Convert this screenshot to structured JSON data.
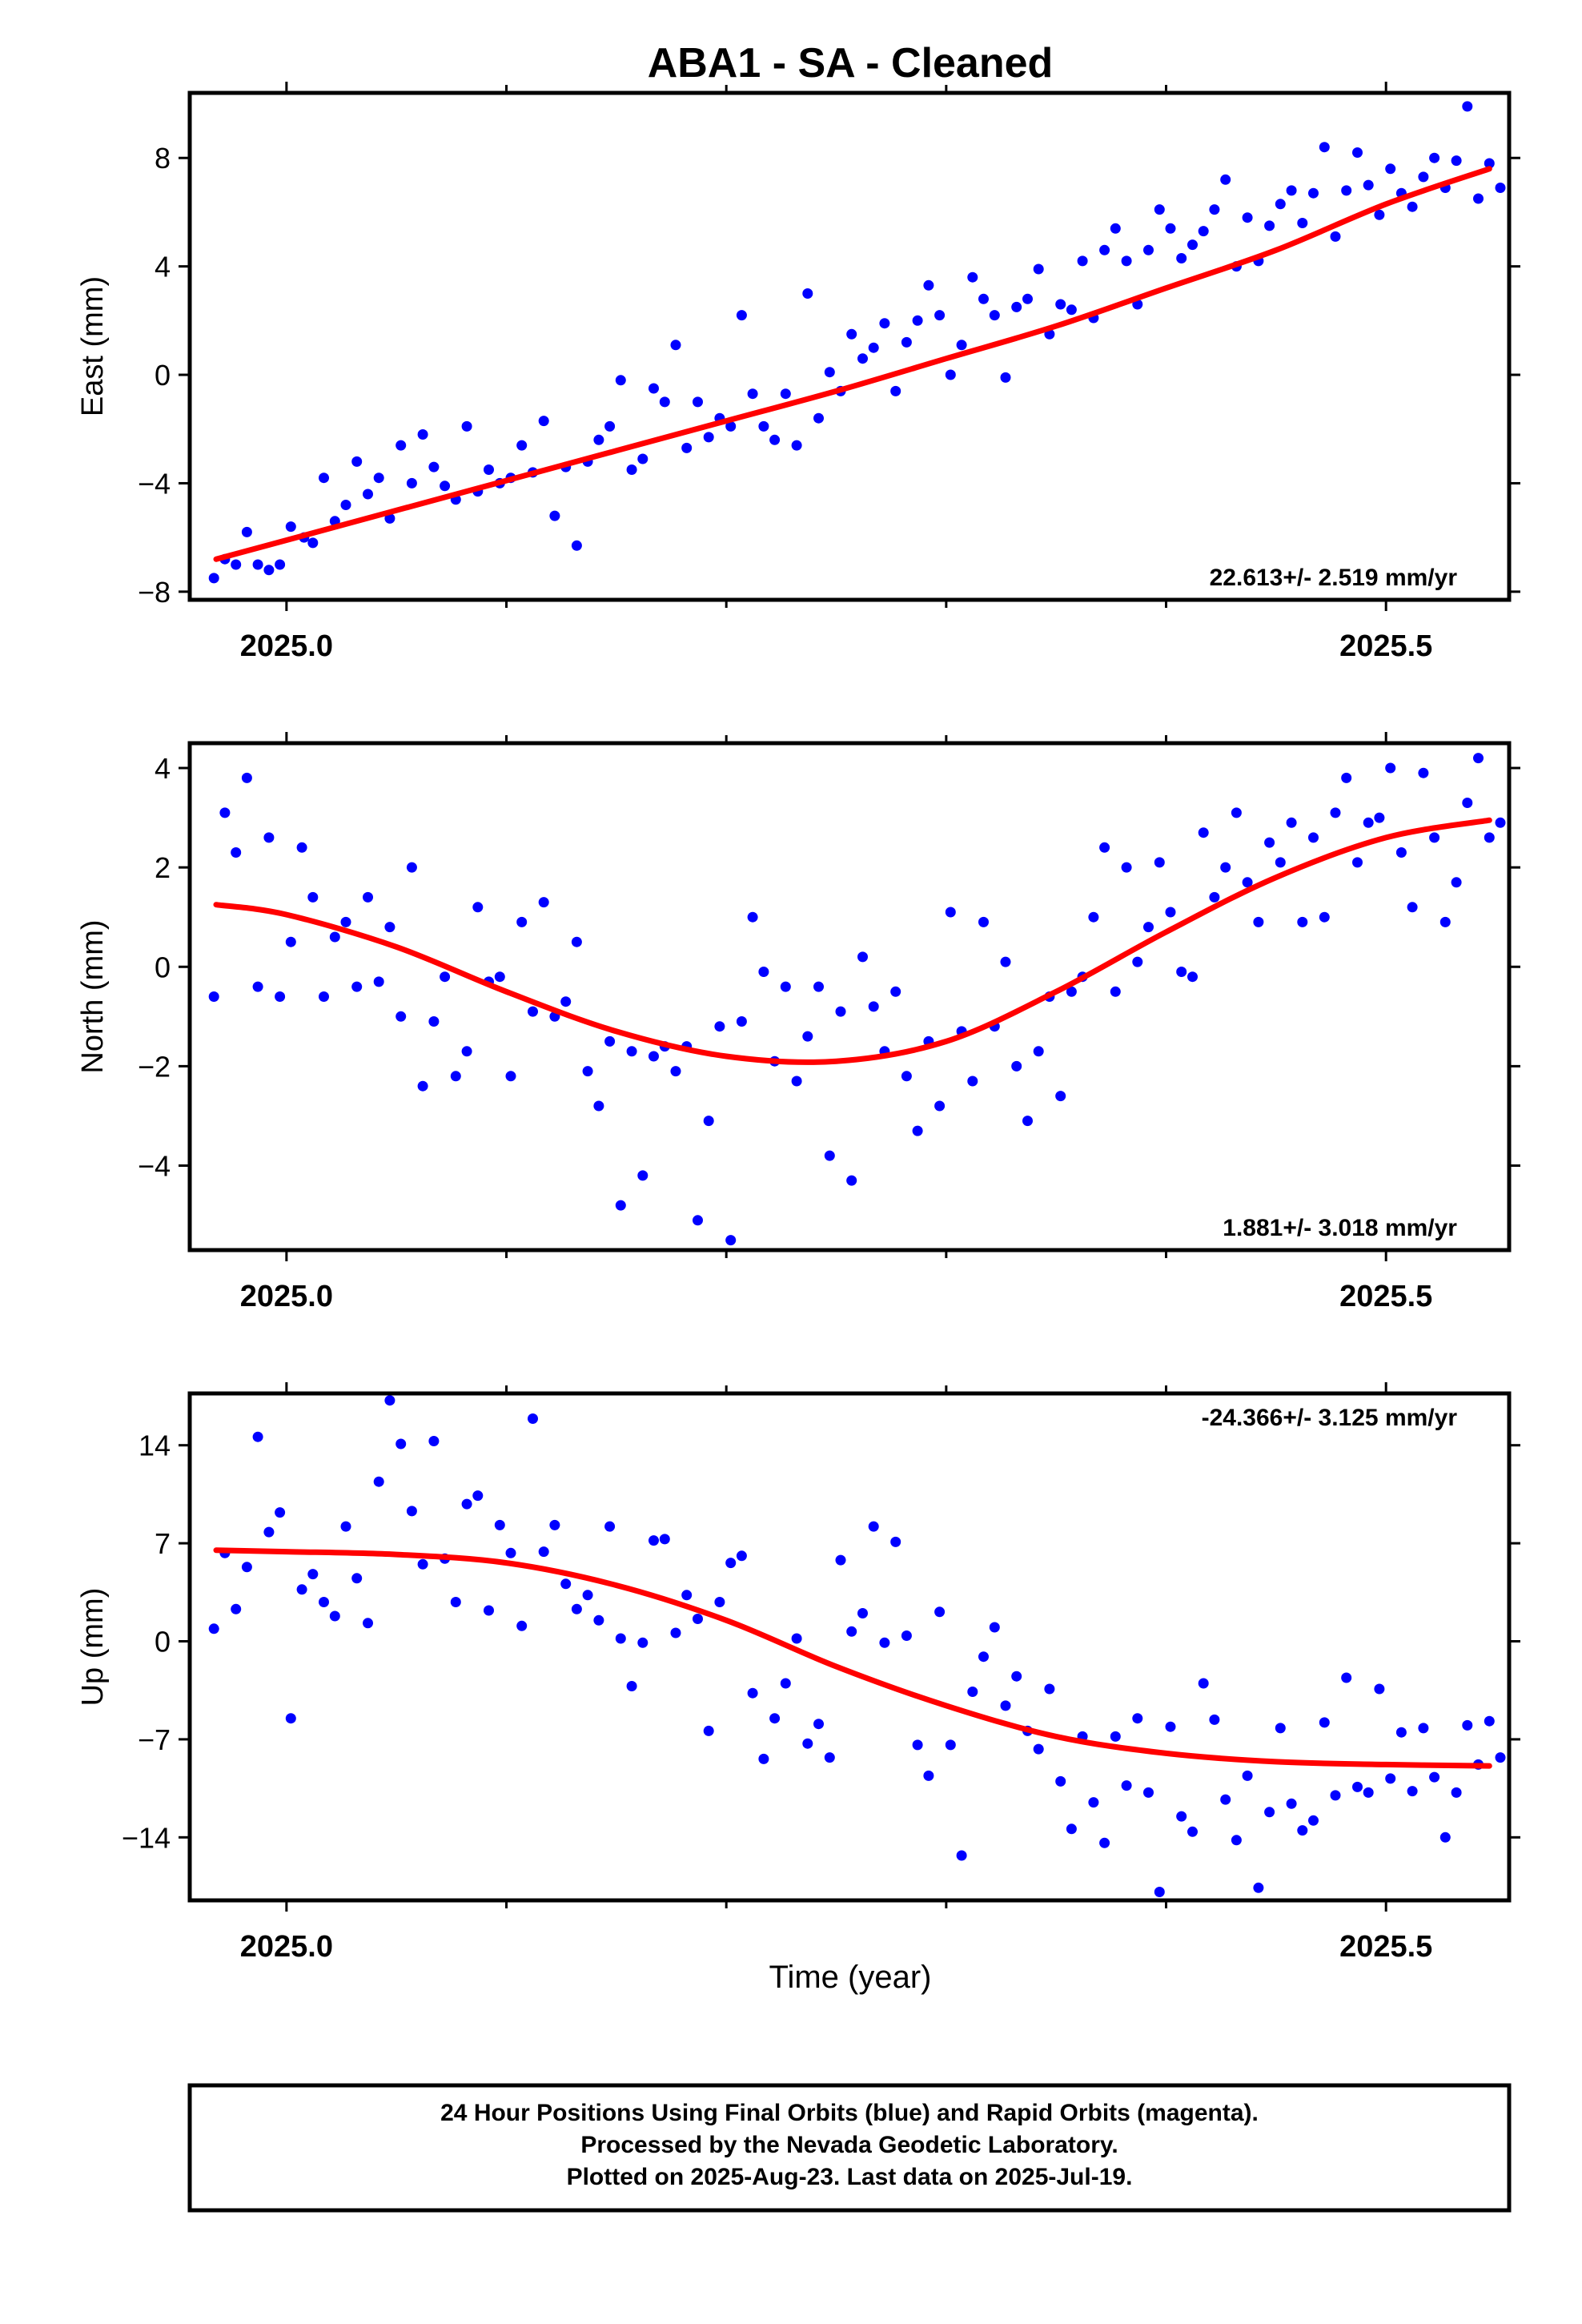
{
  "title": "ABA1  - SA - Cleaned",
  "x_axis_label": "Time (year)",
  "footer": {
    "line1": "24 Hour Positions Using Final Orbits (blue) and Rapid Orbits (magenta).",
    "line2": "Processed by the Nevada Geodetic Laboratory.",
    "line3": "Plotted on 2025-Aug-23. Last data on 2025-Jul-19."
  },
  "colors": {
    "points": "#0000ff",
    "fit": "#ff0000",
    "axes": "#000000"
  },
  "chart_data": [
    {
      "type": "scatter",
      "panel": "east",
      "ylabel": "East (mm)",
      "rate_label": "22.613+/- 2.519 mm/yr",
      "xlim": [
        2024.956,
        2025.556
      ],
      "ylim": [
        -8.3,
        10.4
      ],
      "xticks": [
        2025.0,
        2025.5
      ],
      "xtick_labels": [
        "2025.0",
        "2025.5"
      ],
      "yticks": [
        -8,
        -4,
        0,
        4,
        8
      ],
      "ytick_labels": [
        "−8",
        "−4",
        "0",
        "4",
        "8"
      ],
      "fit_line": {
        "x": [
          2024.968,
          2025.05,
          2025.1,
          2025.15,
          2025.2,
          2025.25,
          2025.3,
          2025.35,
          2025.4,
          2025.45,
          2025.5,
          2025.547
        ],
        "y": [
          -6.8,
          -5.0,
          -3.9,
          -2.8,
          -1.7,
          -0.6,
          0.6,
          1.8,
          3.2,
          4.6,
          6.3,
          7.6
        ]
      },
      "points": {
        "x": [
          2024.967,
          2024.972,
          2024.977,
          2024.982,
          2024.987,
          2024.992,
          2024.997,
          2025.002,
          2025.008,
          2025.012,
          2025.017,
          2025.022,
          2025.027,
          2025.032,
          2025.037,
          2025.042,
          2025.047,
          2025.052,
          2025.057,
          2025.062,
          2025.067,
          2025.072,
          2025.077,
          2025.082,
          2025.087,
          2025.092,
          2025.097,
          2025.102,
          2025.107,
          2025.112,
          2025.117,
          2025.122,
          2025.127,
          2025.132,
          2025.137,
          2025.142,
          2025.147,
          2025.152,
          2025.157,
          2025.162,
          2025.167,
          2025.172,
          2025.177,
          2025.182,
          2025.187,
          2025.192,
          2025.197,
          2025.202,
          2025.207,
          2025.212,
          2025.217,
          2025.222,
          2025.227,
          2025.232,
          2025.237,
          2025.242,
          2025.247,
          2025.252,
          2025.257,
          2025.262,
          2025.267,
          2025.272,
          2025.277,
          2025.282,
          2025.287,
          2025.292,
          2025.297,
          2025.302,
          2025.307,
          2025.312,
          2025.317,
          2025.322,
          2025.327,
          2025.332,
          2025.337,
          2025.342,
          2025.347,
          2025.352,
          2025.357,
          2025.362,
          2025.367,
          2025.372,
          2025.377,
          2025.382,
          2025.387,
          2025.392,
          2025.397,
          2025.402,
          2025.407,
          2025.412,
          2025.417,
          2025.422,
          2025.427,
          2025.432,
          2025.437,
          2025.442,
          2025.447,
          2025.452,
          2025.457,
          2025.462,
          2025.467,
          2025.472,
          2025.477,
          2025.482,
          2025.487,
          2025.492,
          2025.497,
          2025.502,
          2025.507,
          2025.512,
          2025.517,
          2025.522,
          2025.527,
          2025.532,
          2025.537,
          2025.542,
          2025.547,
          2025.552
        ],
        "y": [
          -7.5,
          -6.8,
          -7.0,
          -5.8,
          -7.0,
          -7.2,
          -7.0,
          -5.6,
          -6.0,
          -6.2,
          -3.8,
          -5.4,
          -4.8,
          -3.2,
          -4.4,
          -3.8,
          -5.3,
          -2.6,
          -4.0,
          -2.2,
          -3.4,
          -4.1,
          -4.6,
          -1.9,
          -4.3,
          -3.5,
          -4.0,
          -3.8,
          -2.6,
          -3.6,
          -1.7,
          -5.2,
          -3.4,
          -6.3,
          -3.2,
          -2.4,
          -1.9,
          -0.2,
          -3.5,
          -3.1,
          -0.5,
          -1.0,
          1.1,
          -2.7,
          -1.0,
          -2.3,
          -1.6,
          -1.9,
          2.2,
          -0.7,
          -1.9,
          -2.4,
          -0.7,
          -2.6,
          3.0,
          -1.6,
          0.1,
          -0.6,
          1.5,
          0.6,
          1.0,
          1.9,
          -0.6,
          1.2,
          2.0,
          3.3,
          2.2,
          0.0,
          1.1,
          3.6,
          2.8,
          2.2,
          -0.1,
          2.5,
          2.8,
          3.9,
          1.5,
          2.6,
          2.4,
          4.2,
          2.1,
          4.6,
          5.4,
          4.2,
          2.6,
          4.6,
          6.1,
          5.4,
          4.3,
          4.8,
          5.3,
          6.1,
          7.2,
          4.0,
          5.8,
          4.2,
          5.5,
          6.3,
          6.8,
          5.6,
          6.7,
          8.4,
          5.1,
          6.8,
          8.2,
          7.0,
          5.9,
          7.6,
          6.7,
          6.2,
          7.3,
          8.0,
          6.9,
          7.9,
          9.9,
          6.5,
          7.8,
          6.9
        ]
      }
    },
    {
      "type": "scatter",
      "panel": "north",
      "ylabel": "North (mm)",
      "rate_label": "1.881+/- 3.018 mm/yr",
      "xlim": [
        2024.956,
        2025.556
      ],
      "ylim": [
        -5.7,
        4.5
      ],
      "xticks": [
        2025.0,
        2025.5
      ],
      "xtick_labels": [
        "2025.0",
        "2025.5"
      ],
      "yticks": [
        -4,
        -2,
        0,
        2,
        4
      ],
      "ytick_labels": [
        "−4",
        "−2",
        "0",
        "2",
        "4"
      ],
      "fit_line": {
        "x": [
          2024.968,
          2025.0,
          2025.05,
          2025.1,
          2025.15,
          2025.2,
          2025.25,
          2025.3,
          2025.35,
          2025.4,
          2025.45,
          2025.5,
          2025.547
        ],
        "y": [
          1.25,
          1.05,
          0.4,
          -0.5,
          -1.3,
          -1.8,
          -1.9,
          -1.5,
          -0.5,
          0.7,
          1.8,
          2.6,
          2.95
        ]
      },
      "points": {
        "x": [
          2024.967,
          2024.972,
          2024.977,
          2024.982,
          2024.987,
          2024.992,
          2024.997,
          2025.002,
          2025.007,
          2025.012,
          2025.017,
          2025.022,
          2025.027,
          2025.032,
          2025.037,
          2025.042,
          2025.047,
          2025.052,
          2025.057,
          2025.062,
          2025.067,
          2025.072,
          2025.077,
          2025.082,
          2025.087,
          2025.092,
          2025.097,
          2025.102,
          2025.107,
          2025.112,
          2025.117,
          2025.122,
          2025.127,
          2025.132,
          2025.137,
          2025.142,
          2025.147,
          2025.152,
          2025.157,
          2025.162,
          2025.167,
          2025.172,
          2025.177,
          2025.182,
          2025.187,
          2025.192,
          2025.197,
          2025.202,
          2025.207,
          2025.212,
          2025.217,
          2025.222,
          2025.227,
          2025.232,
          2025.237,
          2025.242,
          2025.247,
          2025.252,
          2025.257,
          2025.262,
          2025.267,
          2025.272,
          2025.277,
          2025.282,
          2025.287,
          2025.292,
          2025.297,
          2025.302,
          2025.307,
          2025.312,
          2025.317,
          2025.322,
          2025.327,
          2025.332,
          2025.337,
          2025.342,
          2025.347,
          2025.352,
          2025.357,
          2025.362,
          2025.367,
          2025.372,
          2025.377,
          2025.382,
          2025.387,
          2025.392,
          2025.397,
          2025.402,
          2025.407,
          2025.412,
          2025.417,
          2025.422,
          2025.427,
          2025.432,
          2025.437,
          2025.442,
          2025.447,
          2025.452,
          2025.457,
          2025.462,
          2025.467,
          2025.472,
          2025.477,
          2025.482,
          2025.487,
          2025.492,
          2025.497,
          2025.502,
          2025.507,
          2025.512,
          2025.517,
          2025.522,
          2025.527,
          2025.532,
          2025.537,
          2025.542,
          2025.547,
          2025.552
        ],
        "y": [
          -0.6,
          3.1,
          2.3,
          3.8,
          -0.4,
          2.6,
          -0.6,
          0.5,
          2.4,
          1.4,
          -0.6,
          0.6,
          0.9,
          -0.4,
          1.4,
          -0.3,
          0.8,
          -1.0,
          2.0,
          -2.4,
          -1.1,
          -0.2,
          -2.2,
          -1.7,
          1.2,
          -0.3,
          -0.2,
          -2.2,
          0.9,
          -0.9,
          1.3,
          -1.0,
          -0.7,
          0.5,
          -2.1,
          -2.8,
          -1.5,
          -4.8,
          -1.7,
          -4.2,
          -1.8,
          -1.6,
          -2.1,
          -1.6,
          -5.1,
          -3.1,
          -1.2,
          -5.5,
          -1.1,
          1.0,
          -0.1,
          -1.9,
          -0.4,
          -2.3,
          -1.4,
          -0.4,
          -3.8,
          -0.9,
          -4.3,
          0.2,
          -0.8,
          -1.7,
          -0.5,
          -2.2,
          -3.3,
          -1.5,
          -2.8,
          1.1,
          -1.3,
          -2.3,
          0.9,
          -1.2,
          0.1,
          -2.0,
          -3.1,
          -1.7,
          -0.6,
          -2.6,
          -0.5,
          -0.2,
          1.0,
          2.4,
          -0.5,
          2.0,
          0.1,
          0.8,
          2.1,
          1.1,
          -0.1,
          -0.2,
          2.7,
          1.4,
          2.0,
          3.1,
          1.7,
          0.9,
          2.5,
          2.1,
          2.9,
          0.9,
          2.6,
          1.0,
          3.1,
          3.8,
          2.1,
          2.9,
          3.0,
          4.0,
          2.3,
          1.2,
          3.9,
          2.6,
          0.9,
          1.7,
          3.3,
          4.2,
          2.6,
          2.9
        ]
      }
    },
    {
      "type": "scatter",
      "panel": "up",
      "ylabel": "Up (mm)",
      "rate_label": "-24.366+/- 3.125 mm/yr",
      "xlim": [
        2024.956,
        2025.556
      ],
      "ylim": [
        -18.5,
        17.7
      ],
      "xticks": [
        2025.0,
        2025.5
      ],
      "xtick_labels": [
        "2025.0",
        "2025.5"
      ],
      "yticks": [
        -14,
        -7,
        0,
        7,
        14
      ],
      "ytick_labels": [
        "−14",
        "−7",
        "0",
        "7",
        "14"
      ],
      "fit_line": {
        "x": [
          2024.968,
          2025.0,
          2025.05,
          2025.1,
          2025.15,
          2025.2,
          2025.25,
          2025.3,
          2025.35,
          2025.4,
          2025.45,
          2025.5,
          2025.547
        ],
        "y": [
          6.5,
          6.4,
          6.2,
          5.6,
          4.0,
          1.5,
          -1.8,
          -4.6,
          -6.8,
          -8.0,
          -8.6,
          -8.8,
          -8.9
        ]
      },
      "points": {
        "x": [
          2024.967,
          2024.972,
          2024.977,
          2024.982,
          2024.987,
          2024.992,
          2024.997,
          2025.002,
          2025.007,
          2025.012,
          2025.017,
          2025.022,
          2025.027,
          2025.032,
          2025.037,
          2025.042,
          2025.047,
          2025.052,
          2025.057,
          2025.062,
          2025.067,
          2025.072,
          2025.077,
          2025.082,
          2025.087,
          2025.092,
          2025.097,
          2025.102,
          2025.107,
          2025.112,
          2025.117,
          2025.122,
          2025.127,
          2025.132,
          2025.137,
          2025.142,
          2025.147,
          2025.152,
          2025.157,
          2025.162,
          2025.167,
          2025.172,
          2025.177,
          2025.182,
          2025.187,
          2025.192,
          2025.197,
          2025.202,
          2025.207,
          2025.212,
          2025.217,
          2025.222,
          2025.227,
          2025.232,
          2025.237,
          2025.242,
          2025.247,
          2025.252,
          2025.257,
          2025.262,
          2025.267,
          2025.272,
          2025.277,
          2025.282,
          2025.287,
          2025.292,
          2025.297,
          2025.302,
          2025.307,
          2025.312,
          2025.317,
          2025.322,
          2025.327,
          2025.332,
          2025.337,
          2025.342,
          2025.347,
          2025.352,
          2025.357,
          2025.362,
          2025.367,
          2025.372,
          2025.377,
          2025.382,
          2025.387,
          2025.392,
          2025.397,
          2025.402,
          2025.407,
          2025.412,
          2025.417,
          2025.422,
          2025.427,
          2025.432,
          2025.437,
          2025.442,
          2025.447,
          2025.452,
          2025.457,
          2025.462,
          2025.467,
          2025.472,
          2025.477,
          2025.482,
          2025.487,
          2025.492,
          2025.497,
          2025.502,
          2025.507,
          2025.512,
          2025.517,
          2025.522,
          2025.527,
          2025.532,
          2025.537,
          2025.542,
          2025.547,
          2025.552
        ],
        "y": [
          0.9,
          6.3,
          2.3,
          5.3,
          14.6,
          7.8,
          9.2,
          -5.5,
          3.7,
          4.8,
          2.8,
          1.8,
          8.2,
          4.5,
          1.3,
          11.4,
          17.2,
          14.1,
          9.3,
          5.5,
          14.3,
          5.9,
          2.8,
          9.8,
          10.4,
          2.2,
          8.3,
          6.3,
          1.1,
          15.9,
          6.4,
          8.3,
          4.1,
          2.3,
          3.3,
          1.5,
          8.2,
          0.2,
          -3.2,
          -0.1,
          7.2,
          7.3,
          0.6,
          3.3,
          1.6,
          -6.4,
          2.8,
          5.6,
          6.1,
          -3.7,
          -8.4,
          -5.5,
          -3.0,
          0.2,
          -7.3,
          -5.9,
          -8.3,
          5.8,
          0.7,
          2.0,
          8.2,
          -0.1,
          7.1,
          0.4,
          -7.4,
          -9.6,
          2.1,
          -7.4,
          -15.3,
          -3.6,
          -1.1,
          1.0,
          -4.6,
          -2.5,
          -6.4,
          -7.7,
          -3.4,
          -10.0,
          -13.4,
          -6.8,
          -11.5,
          -14.4,
          -6.8,
          -10.3,
          -5.5,
          -10.8,
          -17.9,
          -6.1,
          -12.5,
          -13.6,
          -3.0,
          -5.6,
          -11.3,
          -14.2,
          -9.6,
          -17.6,
          -12.2,
          -6.2,
          -11.6,
          -13.5,
          -12.8,
          -5.8,
          -11.0,
          -2.6,
          -10.4,
          -10.8,
          -3.4,
          -9.8,
          -6.5,
          -10.7,
          -6.2,
          -9.7,
          -14.0,
          -10.8,
          -6.0,
          -8.8,
          -5.7,
          -8.3
        ]
      }
    }
  ]
}
